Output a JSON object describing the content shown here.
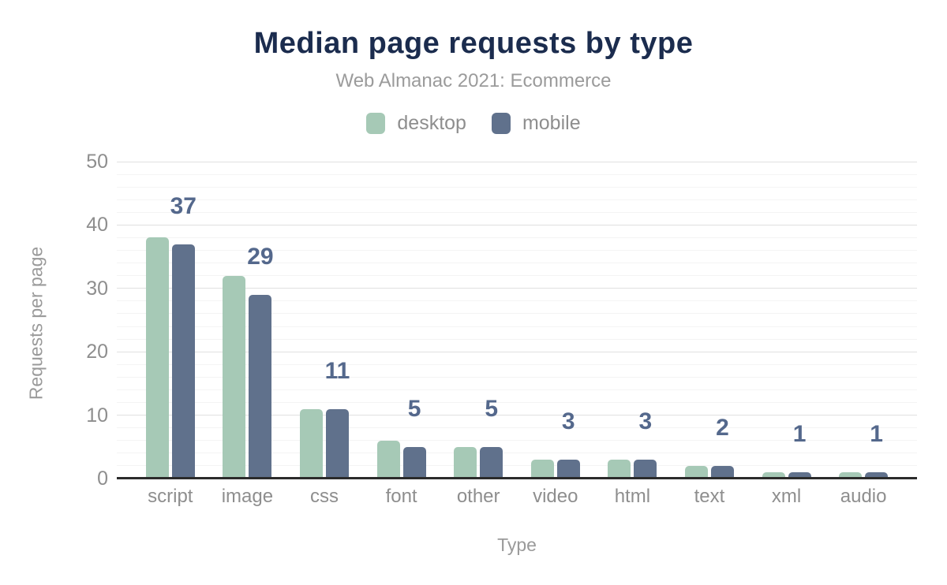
{
  "chart": {
    "title": "Median page requests by type",
    "subtitle": "Web Almanac 2021: Ecommerce",
    "xlabel": "Type",
    "ylabel": "Requests per page"
  },
  "legend": {
    "items": [
      {
        "label": "desktop",
        "color": "#a6c9b6"
      },
      {
        "label": "mobile",
        "color": "#60718c"
      }
    ]
  },
  "colors": {
    "title": "#1b2c4e",
    "subtitle": "#9b9b9b",
    "axis_text": "#8e8e8e",
    "axis_title_text": "#9a9a9a",
    "data_label": "#54688c",
    "axis_line": "#2b2b2b",
    "grid_major": "#e0e0e0",
    "grid_minor": "#f4f4f4",
    "desktop_bar": "#a6c9b6",
    "mobile_bar": "#60718c",
    "background": "#ffffff"
  },
  "chart_data": {
    "type": "bar",
    "title": "Median page requests by type",
    "subtitle": "Web Almanac 2021: Ecommerce",
    "categories": [
      "script",
      "image",
      "css",
      "font",
      "other",
      "video",
      "html",
      "text",
      "xml",
      "audio"
    ],
    "series": [
      {
        "name": "desktop",
        "color": "#a6c9b6",
        "values": [
          38,
          32,
          11,
          6,
          5,
          3,
          3,
          2,
          1,
          1
        ]
      },
      {
        "name": "mobile",
        "color": "#60718c",
        "values": [
          37,
          29,
          11,
          5,
          5,
          3,
          3,
          2,
          1,
          1
        ]
      }
    ],
    "data_labels": [
      37,
      29,
      11,
      5,
      5,
      3,
      3,
      2,
      1,
      1
    ],
    "data_labels_series": "mobile",
    "xlabel": "Type",
    "ylabel": "Requests per page",
    "ylim": [
      0,
      50
    ],
    "yticks": [
      0,
      10,
      20,
      30,
      40,
      50
    ],
    "minor_grid_step": 2,
    "grid": true,
    "legend_position": "top"
  }
}
